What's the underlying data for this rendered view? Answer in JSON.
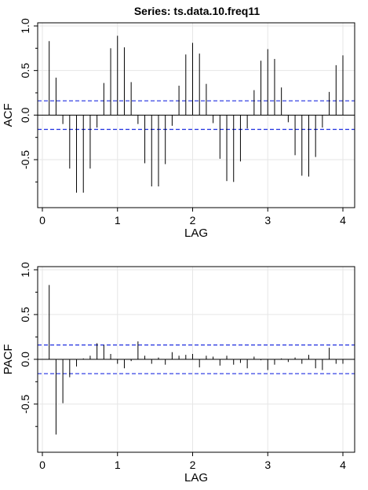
{
  "title": "Series:  ts.data.10.freq11",
  "colors": {
    "bars": "#000000",
    "ci": "#1f2fe0",
    "grid": "#e6e6e6",
    "axes": "#000000"
  },
  "chart_data": [
    {
      "type": "bar",
      "name": "acf",
      "xlabel": "LAG",
      "ylabel": "ACF",
      "xlim": [
        0,
        4.0
      ],
      "ylim": [
        -0.95,
        1.0
      ],
      "xticks": [
        0,
        1,
        2,
        3,
        4
      ],
      "yticks": [
        -0.5,
        0.0,
        0.5,
        1.0
      ],
      "ytick_labels": [
        "-0.5",
        "0.0",
        "0.5",
        "1.0"
      ],
      "grid": true,
      "ci": [
        0.16,
        -0.16
      ],
      "x": [
        0.0909,
        0.1818,
        0.2727,
        0.3636,
        0.4545,
        0.5455,
        0.6364,
        0.7273,
        0.8182,
        0.9091,
        1.0,
        1.0909,
        1.1818,
        1.2727,
        1.3636,
        1.4545,
        1.5455,
        1.6364,
        1.7273,
        1.8182,
        1.9091,
        2.0,
        2.0909,
        2.1818,
        2.2727,
        2.3636,
        2.4545,
        2.5455,
        2.6364,
        2.7273,
        2.8182,
        2.9091,
        3.0,
        3.0909,
        3.1818,
        3.2727,
        3.3636,
        3.4545,
        3.5455,
        3.6364,
        3.7273,
        3.8182,
        3.9091,
        4.0
      ],
      "values": [
        0.83,
        0.42,
        -0.1,
        -0.6,
        -0.87,
        -0.87,
        -0.6,
        -0.14,
        0.36,
        0.75,
        0.89,
        0.76,
        0.37,
        -0.1,
        -0.54,
        -0.8,
        -0.8,
        -0.55,
        -0.12,
        0.33,
        0.68,
        0.81,
        0.69,
        0.35,
        -0.09,
        -0.49,
        -0.74,
        -0.75,
        -0.52,
        -0.15,
        0.28,
        0.61,
        0.74,
        0.63,
        0.31,
        -0.08,
        -0.45,
        -0.68,
        -0.69,
        -0.47,
        -0.14,
        0.26,
        0.56,
        0.67
      ]
    },
    {
      "type": "bar",
      "name": "pacf",
      "xlabel": "LAG",
      "ylabel": "PACF",
      "xlim": [
        0,
        4.0
      ],
      "ylim": [
        -0.95,
        1.0
      ],
      "xticks": [
        0,
        1,
        2,
        3,
        4
      ],
      "yticks": [
        -0.5,
        0.0,
        0.5,
        1.0
      ],
      "ytick_labels": [
        "-0.5",
        "0.0",
        "0.5",
        "1.0"
      ],
      "grid": true,
      "ci": [
        0.16,
        -0.16
      ],
      "x": [
        0.0909,
        0.1818,
        0.2727,
        0.3636,
        0.4545,
        0.5455,
        0.6364,
        0.7273,
        0.8182,
        0.9091,
        1.0,
        1.0909,
        1.1818,
        1.2727,
        1.3636,
        1.4545,
        1.5455,
        1.6364,
        1.7273,
        1.8182,
        1.9091,
        2.0,
        2.0909,
        2.1818,
        2.2727,
        2.3636,
        2.4545,
        2.5455,
        2.6364,
        2.7273,
        2.8182,
        2.9091,
        3.0,
        3.0909,
        3.1818,
        3.2727,
        3.3636,
        3.4545,
        3.5455,
        3.6364,
        3.7273,
        3.8182,
        3.9091,
        4.0
      ],
      "values": [
        0.83,
        -0.84,
        -0.49,
        -0.2,
        -0.08,
        0.01,
        0.04,
        0.18,
        0.16,
        0.06,
        -0.05,
        -0.1,
        -0.02,
        0.2,
        0.04,
        -0.05,
        0.02,
        -0.06,
        0.08,
        0.04,
        0.05,
        0.06,
        -0.09,
        0.04,
        0.03,
        -0.07,
        0.04,
        -0.06,
        -0.04,
        -0.1,
        0.03,
        -0.01,
        -0.12,
        -0.06,
        0.01,
        -0.03,
        0.02,
        -0.05,
        0.05,
        -0.1,
        -0.12,
        0.13,
        -0.05,
        -0.05
      ]
    }
  ]
}
